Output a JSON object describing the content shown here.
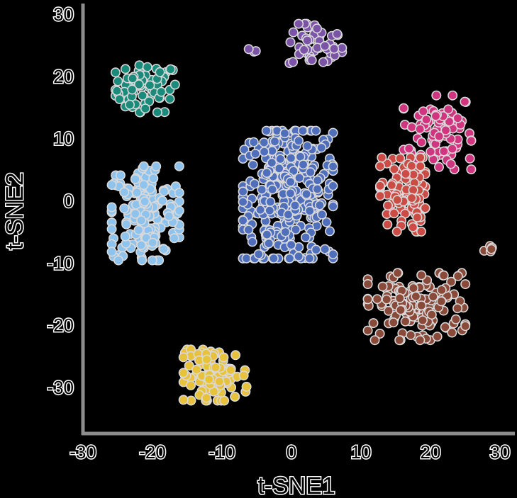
{
  "chart_data": {
    "type": "scatter",
    "title": "",
    "xlabel": "t-SNE1",
    "ylabel": "t-SNE2",
    "xlim": [
      -30,
      32
    ],
    "ylim": [
      -37,
      31
    ],
    "xticks": [
      "-30",
      "-20",
      "-10",
      "0",
      "10",
      "20",
      "30"
    ],
    "yticks": [
      "30",
      "20",
      "10",
      "0",
      "-10",
      "-20",
      "-30"
    ],
    "xtick_values": [
      -30,
      -20,
      -10,
      0,
      10,
      20,
      30
    ],
    "ytick_values": [
      30,
      20,
      10,
      0,
      -10,
      -20,
      -30
    ],
    "grid": false,
    "legend": "none",
    "clusters": [
      {
        "color": "#1a8a7a",
        "center": [
          -21,
          18
        ],
        "spread": [
          4.0,
          3.5
        ],
        "count": 70
      },
      {
        "color": "#7b54a8",
        "center": [
          3.5,
          25
        ],
        "spread": [
          3.5,
          3.2
        ],
        "count": 50
      },
      {
        "color": "#7b54a8",
        "center": [
          -5.5,
          24
        ],
        "spread": [
          0.6,
          0.6
        ],
        "count": 3
      },
      {
        "color": "#d1357f",
        "center": [
          21,
          11
        ],
        "spread": [
          4.5,
          5.5
        ],
        "count": 95
      },
      {
        "color": "#4f6fbd",
        "center": [
          -0.5,
          1
        ],
        "spread": [
          6.0,
          9.5
        ],
        "count": 340
      },
      {
        "color": "#8ec3ee",
        "center": [
          -21,
          -2
        ],
        "spread": [
          4.5,
          7.0
        ],
        "count": 180
      },
      {
        "color": "#cc4b45",
        "center": [
          16,
          1
        ],
        "spread": [
          3.0,
          5.5
        ],
        "count": 105
      },
      {
        "color": "#8a4a3a",
        "center": [
          18,
          -17
        ],
        "spread": [
          6.5,
          5.0
        ],
        "count": 140
      },
      {
        "color": "#8a4a3a",
        "center": [
          28.5,
          -8
        ],
        "spread": [
          1.0,
          0.8
        ],
        "count": 6
      },
      {
        "color": "#e8c23a",
        "center": [
          -11,
          -28
        ],
        "spread": [
          4.2,
          3.8
        ],
        "count": 95
      }
    ]
  }
}
